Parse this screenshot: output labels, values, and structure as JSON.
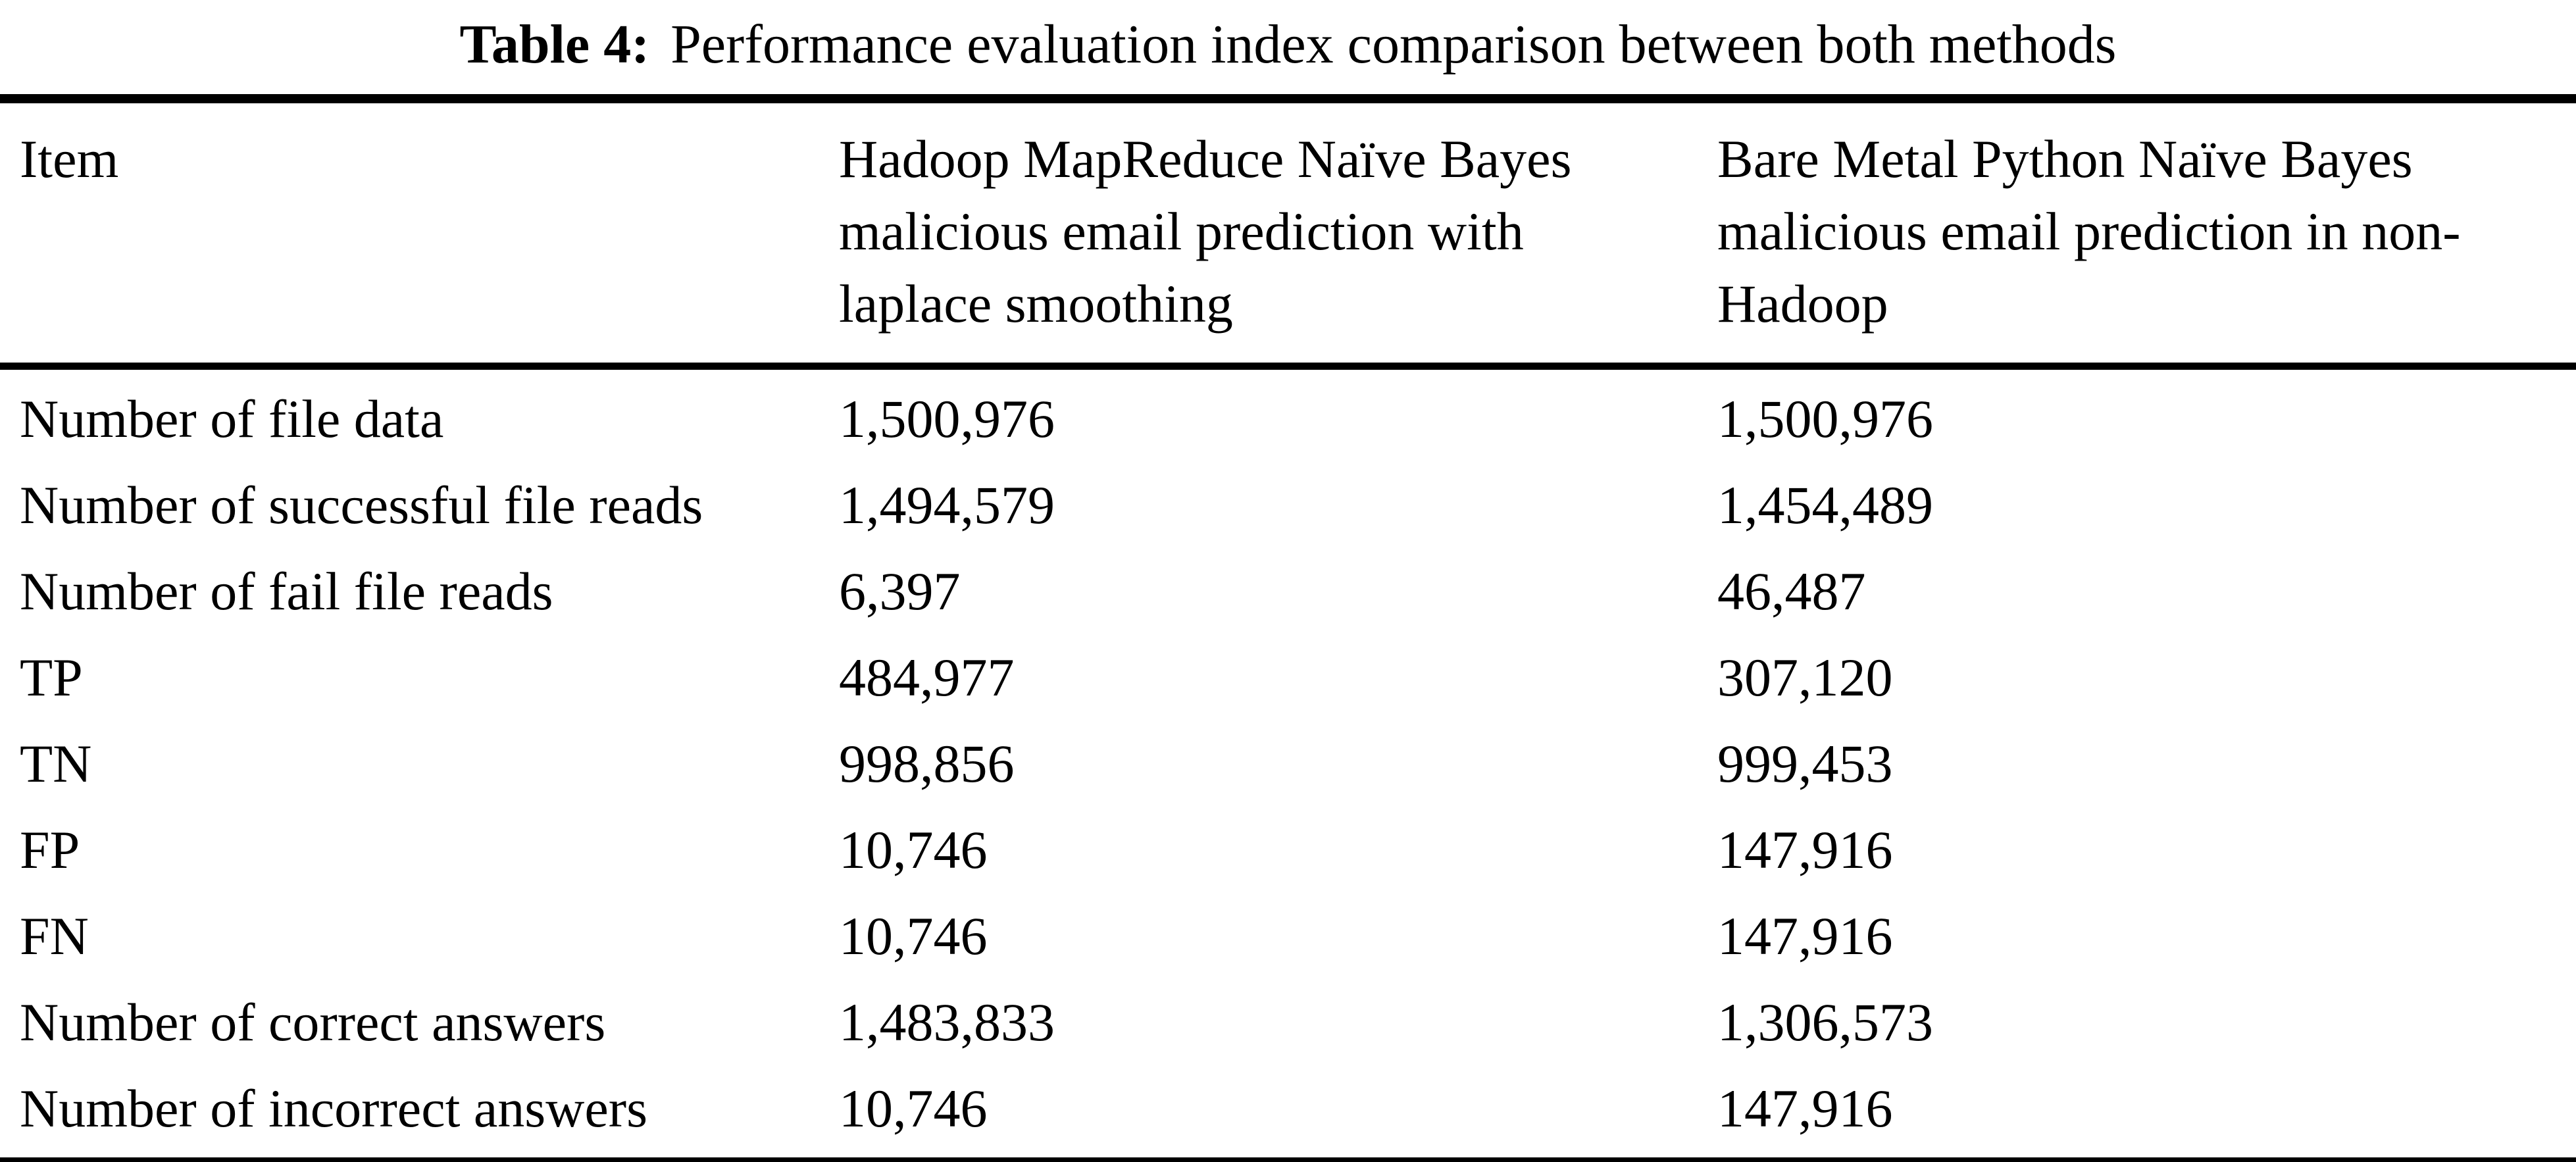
{
  "caption": {
    "label": "Table 4:",
    "text": "Performance evaluation index comparison between both methods"
  },
  "table": {
    "columns": [
      {
        "header": "Item"
      },
      {
        "header": "Hadoop MapReduce Naïve Bayes malicious email prediction with laplace smoothing"
      },
      {
        "header": "Bare Metal Python Naïve Bayes malicious email prediction in non-Hadoop"
      }
    ],
    "rows": [
      {
        "item": "Number of file data",
        "hadoop": "1,500,976",
        "bare_metal": "1,500,976"
      },
      {
        "item": "Number of successful file reads",
        "hadoop": "1,494,579",
        "bare_metal": "1,454,489"
      },
      {
        "item": "Number of fail file reads",
        "hadoop": "6,397",
        "bare_metal": "46,487"
      },
      {
        "item": "TP",
        "hadoop": "484,977",
        "bare_metal": "307,120"
      },
      {
        "item": "TN",
        "hadoop": "998,856",
        "bare_metal": "999,453"
      },
      {
        "item": "FP",
        "hadoop": "10,746",
        "bare_metal": "147,916"
      },
      {
        "item": "FN",
        "hadoop": "10,746",
        "bare_metal": "147,916"
      },
      {
        "item": "Number of correct answers",
        "hadoop": "1,483,833",
        "bare_metal": "1,306,573"
      },
      {
        "item": "Number of incorrect answers",
        "hadoop": "10,746",
        "bare_metal": "147,916"
      }
    ]
  }
}
